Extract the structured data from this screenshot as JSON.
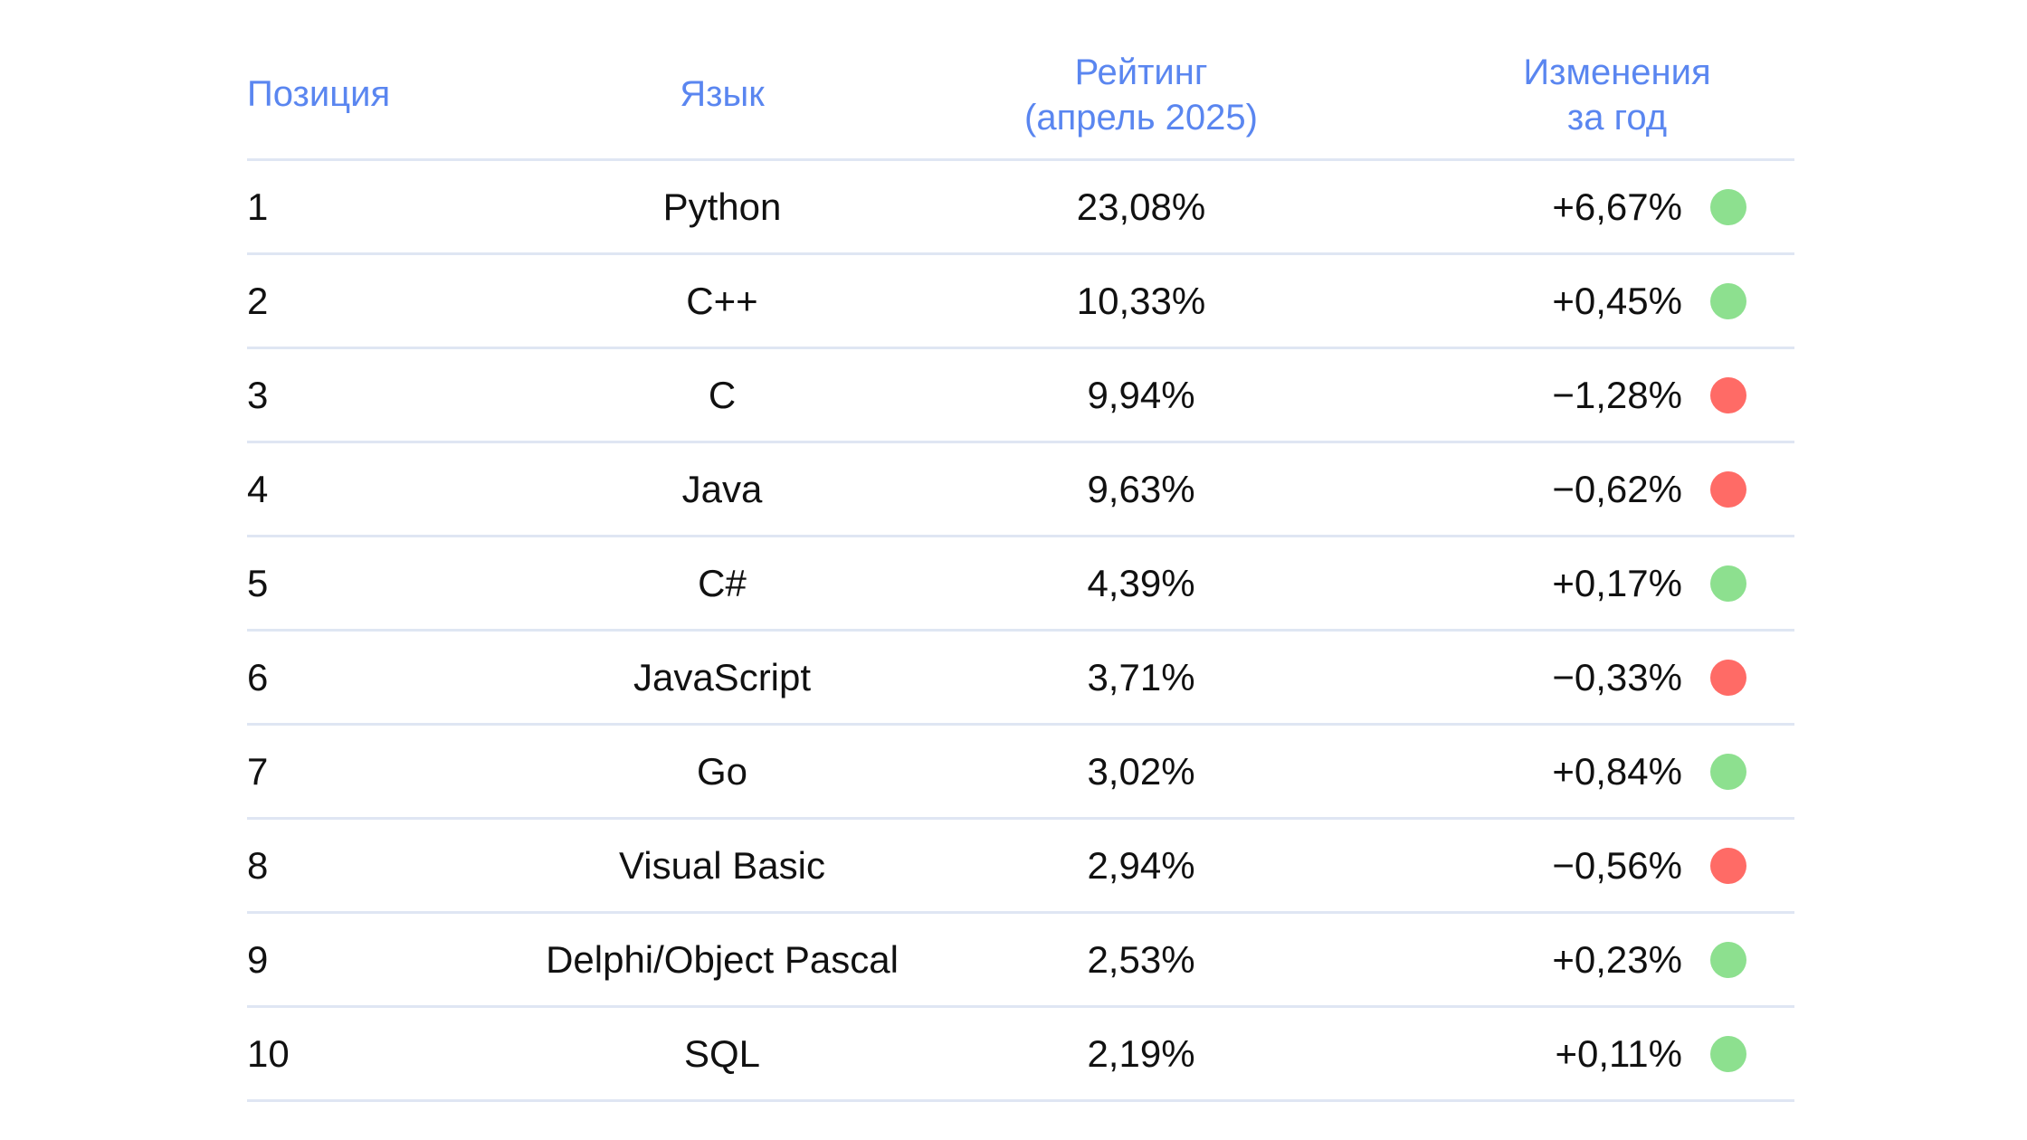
{
  "header": {
    "position": "Позиция",
    "language": "Язык",
    "rating_line1": "Рейтинг",
    "rating_line2": "(апрель 2025)",
    "change_line1": "Изменения",
    "change_line2": "за год"
  },
  "colors": {
    "header_text": "#5a86f0",
    "up": "#8de08f",
    "down": "#ff6b66",
    "divider": "#dfe6f3"
  },
  "rows": [
    {
      "position": "1",
      "language": "Python",
      "rating": "23,08%",
      "change": "+6,67%",
      "trend": "up"
    },
    {
      "position": "2",
      "language": "C++",
      "rating": "10,33%",
      "change": "+0,45%",
      "trend": "up"
    },
    {
      "position": "3",
      "language": "C",
      "rating": "9,94%",
      "change": "−1,28%",
      "trend": "down"
    },
    {
      "position": "4",
      "language": "Java",
      "rating": "9,63%",
      "change": "−0,62%",
      "trend": "down"
    },
    {
      "position": "5",
      "language": "C#",
      "rating": "4,39%",
      "change": "+0,17%",
      "trend": "up"
    },
    {
      "position": "6",
      "language": "JavaScript",
      "rating": "3,71%",
      "change": "−0,33%",
      "trend": "down"
    },
    {
      "position": "7",
      "language": "Go",
      "rating": "3,02%",
      "change": "+0,84%",
      "trend": "up"
    },
    {
      "position": "8",
      "language": "Visual Basic",
      "rating": "2,94%",
      "change": "−0,56%",
      "trend": "down"
    },
    {
      "position": "9",
      "language": "Delphi/Object Pascal",
      "rating": "2,53%",
      "change": "+0,23%",
      "trend": "up"
    },
    {
      "position": "10",
      "language": "SQL",
      "rating": "2,19%",
      "change": "+0,11%",
      "trend": "up"
    }
  ]
}
